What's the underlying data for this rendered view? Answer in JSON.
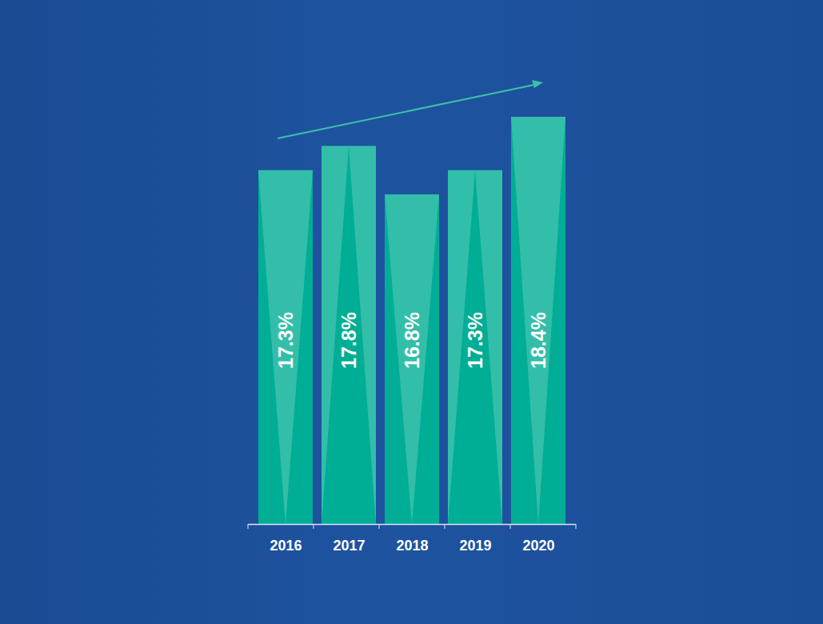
{
  "chart_data": {
    "type": "bar",
    "categories": [
      "2016",
      "2017",
      "2018",
      "2019",
      "2020"
    ],
    "values": [
      17.3,
      17.8,
      16.8,
      17.3,
      18.4
    ],
    "value_labels": [
      "17.3%",
      "17.8%",
      "16.8%",
      "17.3%",
      "18.4%"
    ],
    "data_labels": true,
    "color": "#00ae95",
    "ylim": [
      10,
      20
    ],
    "yticks": [],
    "tick_labels": "x",
    "grid": false
  }
}
